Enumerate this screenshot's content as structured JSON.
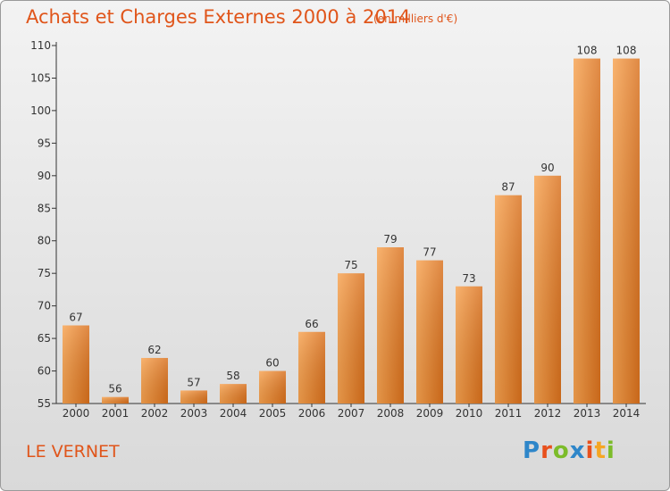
{
  "title": "Achats et Charges Externes 2000 à 2014",
  "subtitle": "(en milliers d'€)",
  "city": "LE VERNET",
  "logo": {
    "letters": [
      "P",
      "r",
      "o",
      "x",
      "i",
      "t",
      "i"
    ],
    "colors": [
      "#2e86c9",
      "#e8501c",
      "#7cbc2a",
      "#2e86c9",
      "#e8501c",
      "#f5a623",
      "#7cbc2a"
    ]
  },
  "colors": {
    "bar_light": "#f7a24f",
    "bar_dark": "#d9701c",
    "text_accent": "#e0551a"
  },
  "chart_data": {
    "type": "bar",
    "categories": [
      "2000",
      "2001",
      "2002",
      "2003",
      "2004",
      "2005",
      "2006",
      "2007",
      "2008",
      "2009",
      "2010",
      "2011",
      "2012",
      "2013",
      "2014"
    ],
    "values": [
      67,
      56,
      62,
      57,
      58,
      60,
      66,
      75,
      79,
      77,
      73,
      87,
      90,
      108,
      108
    ],
    "ylim": [
      55,
      110
    ],
    "yticks": [
      55,
      60,
      65,
      70,
      75,
      80,
      85,
      90,
      95,
      100,
      105,
      110
    ],
    "grid": false,
    "data_labels": true
  }
}
